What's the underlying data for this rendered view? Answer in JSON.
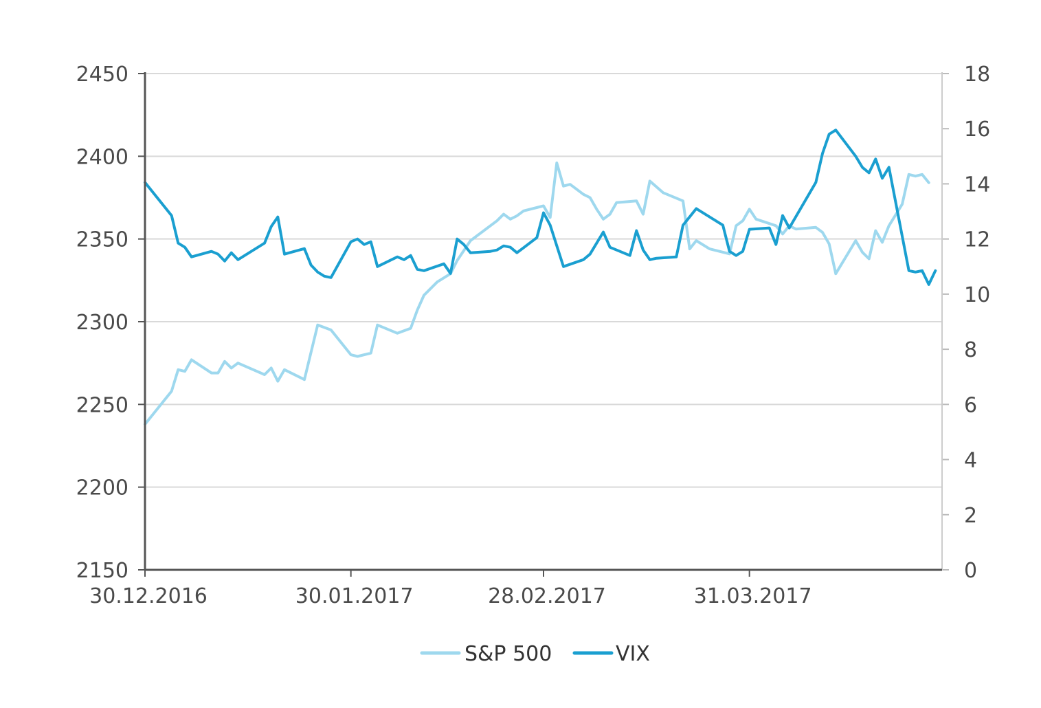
{
  "chart_data": {
    "type": "line",
    "title": "",
    "xlabel": "",
    "ylabel": "",
    "x_ticks": [
      "30.12.2016",
      "30.01.2017",
      "28.02.2017",
      "31.03.2017"
    ],
    "x_tick_values": [
      0,
      31,
      60,
      91
    ],
    "xlim": [
      0,
      120
    ],
    "y_left": {
      "lim": [
        2150,
        2450
      ],
      "ticks": [
        "2150",
        "2200",
        "2250",
        "2300",
        "2350",
        "2400",
        "2450"
      ]
    },
    "y_right": {
      "lim": [
        0,
        18
      ],
      "ticks": [
        "0",
        "2",
        "4",
        "6",
        "8",
        "10",
        "12",
        "14",
        "16",
        "18"
      ]
    },
    "grid": true,
    "legend_position": "bottom",
    "series": [
      {
        "name": "S&P 500",
        "axis": "left",
        "color": "#9ed8ee",
        "points": [
          [
            0,
            2238
          ],
          [
            4,
            2258
          ],
          [
            5,
            2271
          ],
          [
            6,
            2270
          ],
          [
            7,
            2277
          ],
          [
            10,
            2269
          ],
          [
            11,
            2269
          ],
          [
            12,
            2276
          ],
          [
            13,
            2272
          ],
          [
            14,
            2275
          ],
          [
            18,
            2268
          ],
          [
            19,
            2272
          ],
          [
            20,
            2264
          ],
          [
            21,
            2271
          ],
          [
            24,
            2265
          ],
          [
            26,
            2298
          ],
          [
            28,
            2295
          ],
          [
            31,
            2280
          ],
          [
            32,
            2279
          ],
          [
            34,
            2281
          ],
          [
            35,
            2298
          ],
          [
            38,
            2293
          ],
          [
            40,
            2296
          ],
          [
            41,
            2307
          ],
          [
            42,
            2316
          ],
          [
            44,
            2324
          ],
          [
            46,
            2329
          ],
          [
            47,
            2337
          ],
          [
            49,
            2349
          ],
          [
            53,
            2361
          ],
          [
            54,
            2365
          ],
          [
            55,
            2362
          ],
          [
            56,
            2364
          ],
          [
            57,
            2367
          ],
          [
            60,
            2370
          ],
          [
            61,
            2363
          ],
          [
            62,
            2396
          ],
          [
            63,
            2382
          ],
          [
            64,
            2383
          ],
          [
            66,
            2377
          ],
          [
            67,
            2375
          ],
          [
            68,
            2368
          ],
          [
            69,
            2362
          ],
          [
            70,
            2365
          ],
          [
            71,
            2372
          ],
          [
            74,
            2373
          ],
          [
            75,
            2365
          ],
          [
            76,
            2385
          ],
          [
            78,
            2378
          ],
          [
            81,
            2373
          ],
          [
            82,
            2344
          ],
          [
            83,
            2349
          ],
          [
            85,
            2344
          ],
          [
            88,
            2341
          ],
          [
            89,
            2358
          ],
          [
            90,
            2361
          ],
          [
            91,
            2368
          ],
          [
            92,
            2362
          ],
          [
            95,
            2358
          ],
          [
            96,
            2353
          ],
          [
            97,
            2358
          ],
          [
            98,
            2356
          ],
          [
            101,
            2357
          ],
          [
            102,
            2354
          ],
          [
            103,
            2347
          ],
          [
            104,
            2329
          ],
          [
            107,
            2349
          ],
          [
            108,
            2342
          ],
          [
            109,
            2338
          ],
          [
            110,
            2355
          ],
          [
            111,
            2348
          ],
          [
            112,
            2358
          ],
          [
            114,
            2371
          ],
          [
            115,
            2389
          ],
          [
            116,
            2388
          ],
          [
            117,
            2389
          ],
          [
            118,
            2384
          ]
        ]
      },
      {
        "name": "VIX",
        "axis": "right",
        "color": "#1a9fd0",
        "points": [
          [
            0,
            14.05
          ],
          [
            4,
            12.85
          ],
          [
            5,
            11.85
          ],
          [
            6,
            11.7
          ],
          [
            7,
            11.35
          ],
          [
            10,
            11.55
          ],
          [
            11,
            11.45
          ],
          [
            12,
            11.2
          ],
          [
            13,
            11.5
          ],
          [
            14,
            11.25
          ],
          [
            18,
            11.85
          ],
          [
            19,
            12.45
          ],
          [
            20,
            12.8
          ],
          [
            21,
            11.45
          ],
          [
            24,
            11.65
          ],
          [
            25,
            11.05
          ],
          [
            26,
            10.8
          ],
          [
            27,
            10.65
          ],
          [
            28,
            10.6
          ],
          [
            31,
            11.9
          ],
          [
            32,
            12.0
          ],
          [
            33,
            11.8
          ],
          [
            34,
            11.9
          ],
          [
            35,
            11.0
          ],
          [
            38,
            11.35
          ],
          [
            39,
            11.25
          ],
          [
            40,
            11.4
          ],
          [
            41,
            10.9
          ],
          [
            42,
            10.85
          ],
          [
            45,
            11.1
          ],
          [
            46,
            10.75
          ],
          [
            47,
            12.0
          ],
          [
            48,
            11.8
          ],
          [
            49,
            11.5
          ],
          [
            52,
            11.55
          ],
          [
            53,
            11.6
          ],
          [
            54,
            11.75
          ],
          [
            55,
            11.7
          ],
          [
            56,
            11.5
          ],
          [
            59,
            12.05
          ],
          [
            60,
            12.95
          ],
          [
            61,
            12.5
          ],
          [
            63,
            11.0
          ],
          [
            66,
            11.25
          ],
          [
            67,
            11.45
          ],
          [
            69,
            12.25
          ],
          [
            70,
            11.7
          ],
          [
            73,
            11.4
          ],
          [
            74,
            12.3
          ],
          [
            75,
            11.6
          ],
          [
            76,
            11.25
          ],
          [
            77,
            11.3
          ],
          [
            80,
            11.35
          ],
          [
            81,
            12.5
          ],
          [
            83,
            13.1
          ],
          [
            87,
            12.5
          ],
          [
            88,
            11.55
          ],
          [
            89,
            11.4
          ],
          [
            90,
            11.55
          ],
          [
            91,
            12.35
          ],
          [
            94,
            12.4
          ],
          [
            95,
            11.8
          ],
          [
            96,
            12.85
          ],
          [
            97,
            12.4
          ],
          [
            101,
            14.05
          ],
          [
            102,
            15.1
          ],
          [
            103,
            15.8
          ],
          [
            104,
            15.95
          ],
          [
            107,
            15.0
          ],
          [
            108,
            14.6
          ],
          [
            109,
            14.4
          ],
          [
            110,
            14.9
          ],
          [
            111,
            14.2
          ],
          [
            112,
            14.6
          ],
          [
            115,
            10.85
          ],
          [
            116,
            10.8
          ],
          [
            117,
            10.85
          ],
          [
            118,
            10.35
          ],
          [
            119,
            10.85
          ]
        ]
      }
    ]
  }
}
